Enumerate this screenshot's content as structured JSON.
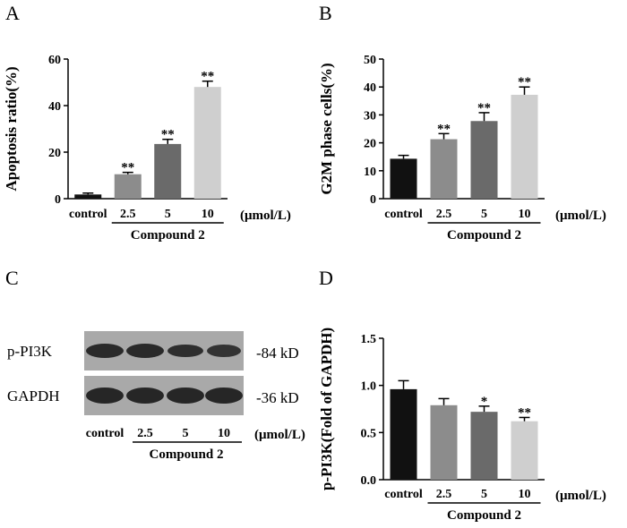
{
  "chart_data": [
    {
      "panel": "A",
      "type": "bar",
      "categories": [
        "control",
        "2.5",
        "5",
        "10"
      ],
      "values": [
        1.8,
        10.5,
        23.5,
        48.0
      ],
      "errors": [
        0.6,
        0.8,
        2.0,
        2.5
      ],
      "significance": [
        "",
        "**",
        "**",
        "**"
      ],
      "bar_colors": [
        "#111111",
        "#8c8c8c",
        "#6a6a6a",
        "#cfcfcf"
      ],
      "ylabel": "Apoptosis ratio(%)",
      "yticks": [
        "0",
        "20",
        "40",
        "60"
      ],
      "ylim": [
        0,
        60
      ],
      "unit_label": "(μmol/L)",
      "group_label": "Compound 2"
    },
    {
      "panel": "B",
      "type": "bar",
      "categories": [
        "control",
        "2.5",
        "5",
        "10"
      ],
      "values": [
        14.3,
        21.3,
        27.8,
        37.2
      ],
      "errors": [
        1.2,
        2.0,
        3.0,
        2.8
      ],
      "significance": [
        "",
        "**",
        "**",
        "**"
      ],
      "bar_colors": [
        "#111111",
        "#8c8c8c",
        "#6a6a6a",
        "#cfcfcf"
      ],
      "ylabel": "G2M phase cells(%)",
      "yticks": [
        "0",
        "10",
        "20",
        "30",
        "40",
        "50"
      ],
      "ylim": [
        0,
        50
      ],
      "unit_label": "(μmol/L)",
      "group_label": "Compound 2"
    },
    {
      "panel": "D",
      "type": "bar",
      "categories": [
        "control",
        "2.5",
        "5",
        "10"
      ],
      "values": [
        0.96,
        0.79,
        0.72,
        0.62
      ],
      "errors": [
        0.09,
        0.07,
        0.06,
        0.04
      ],
      "significance": [
        "",
        "",
        "*",
        "**"
      ],
      "bar_colors": [
        "#111111",
        "#8c8c8c",
        "#6a6a6a",
        "#cfcfcf"
      ],
      "ylabel": "p-PI3K(Fold of GAPDH)",
      "yticks": [
        "0.0",
        "0.5",
        "1.0",
        "1.5"
      ],
      "ylim": [
        0,
        1.5
      ],
      "unit_label": "(μmol/L)",
      "group_label": "Compound 2"
    }
  ],
  "panels": {
    "a": "A",
    "b": "B",
    "c": "C",
    "d": "D"
  },
  "blot": {
    "rows": [
      {
        "label": "p-PI3K",
        "kd": "-84 kD"
      },
      {
        "label": "GAPDH",
        "kd": "-36 kD"
      }
    ],
    "lanes": [
      "control",
      "2.5",
      "5",
      "10"
    ],
    "unit_label": "(μmol/L)",
    "group_label": "Compound 2"
  }
}
